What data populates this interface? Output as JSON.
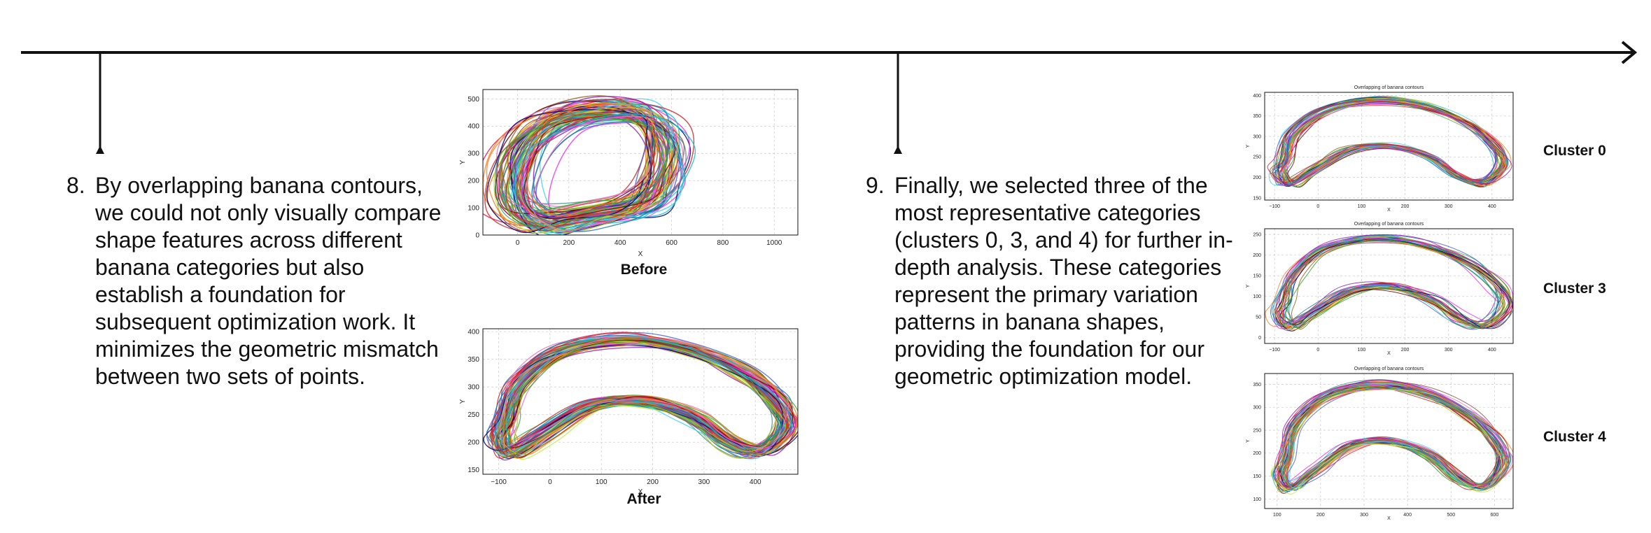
{
  "steps": [
    {
      "number": "8.",
      "text": "By overlapping banana contours, we could not only visually compare shape features across different banana categories but also establish a foundation for subsequent optimization work. It minimizes the geometric mismatch between two sets of points."
    },
    {
      "number": "9.",
      "text": "Finally, we selected three of the most representative categories (clusters 0, 3, and 4) for further in-depth analysis. These categories represent the primary variation patterns in banana shapes, providing the foundation for our geometric optimization model."
    }
  ],
  "figures": {
    "before": {
      "caption": "Before",
      "xlabel": "X",
      "ylabel": "Y",
      "xticks": [
        "0",
        "200",
        "400",
        "600",
        "800",
        "1000"
      ],
      "yticks": [
        "0",
        "100",
        "200",
        "300",
        "400",
        "500"
      ]
    },
    "after": {
      "caption": "After",
      "xlabel": "X",
      "ylabel": "Y",
      "xticks": [
        "−100",
        "0",
        "100",
        "200",
        "300",
        "400"
      ],
      "yticks": [
        "150",
        "200",
        "250",
        "300",
        "350",
        "400"
      ]
    },
    "clusters": [
      {
        "label": "Cluster 0",
        "title": "Overlapping of banana contours",
        "xlabel": "X",
        "ylabel": "Y",
        "xticks": [
          "−100",
          "0",
          "100",
          "200",
          "300",
          "400"
        ],
        "yticks": [
          "150",
          "200",
          "250",
          "300",
          "350",
          "400"
        ]
      },
      {
        "label": "Cluster 3",
        "title": "Overlapping of banana contours",
        "xlabel": "X",
        "ylabel": "Y",
        "xticks": [
          "−100",
          "0",
          "100",
          "200",
          "300",
          "400"
        ],
        "yticks": [
          "0",
          "50",
          "100",
          "150",
          "200",
          "250"
        ]
      },
      {
        "label": "Cluster 4",
        "title": "Overlapping of banana contours",
        "xlabel": "X",
        "ylabel": "Y",
        "xticks": [
          "100",
          "200",
          "300",
          "400",
          "500",
          "600"
        ],
        "yticks": [
          "100",
          "150",
          "200",
          "250",
          "300",
          "350"
        ]
      }
    ]
  },
  "colors": {
    "axis": "#111111",
    "grid": "#d0d0d0",
    "palette": [
      "#e6194b",
      "#3cb44b",
      "#4363d8",
      "#f58231",
      "#911eb4",
      "#42d4f4",
      "#f032e6",
      "#bfef45",
      "#469990",
      "#9a6324",
      "#800000",
      "#000075",
      "#ff7f0e",
      "#2ca02c",
      "#1f77b4",
      "#d62728",
      "#17becf",
      "#bcbd22",
      "#8c564b",
      "#e377c2"
    ]
  }
}
